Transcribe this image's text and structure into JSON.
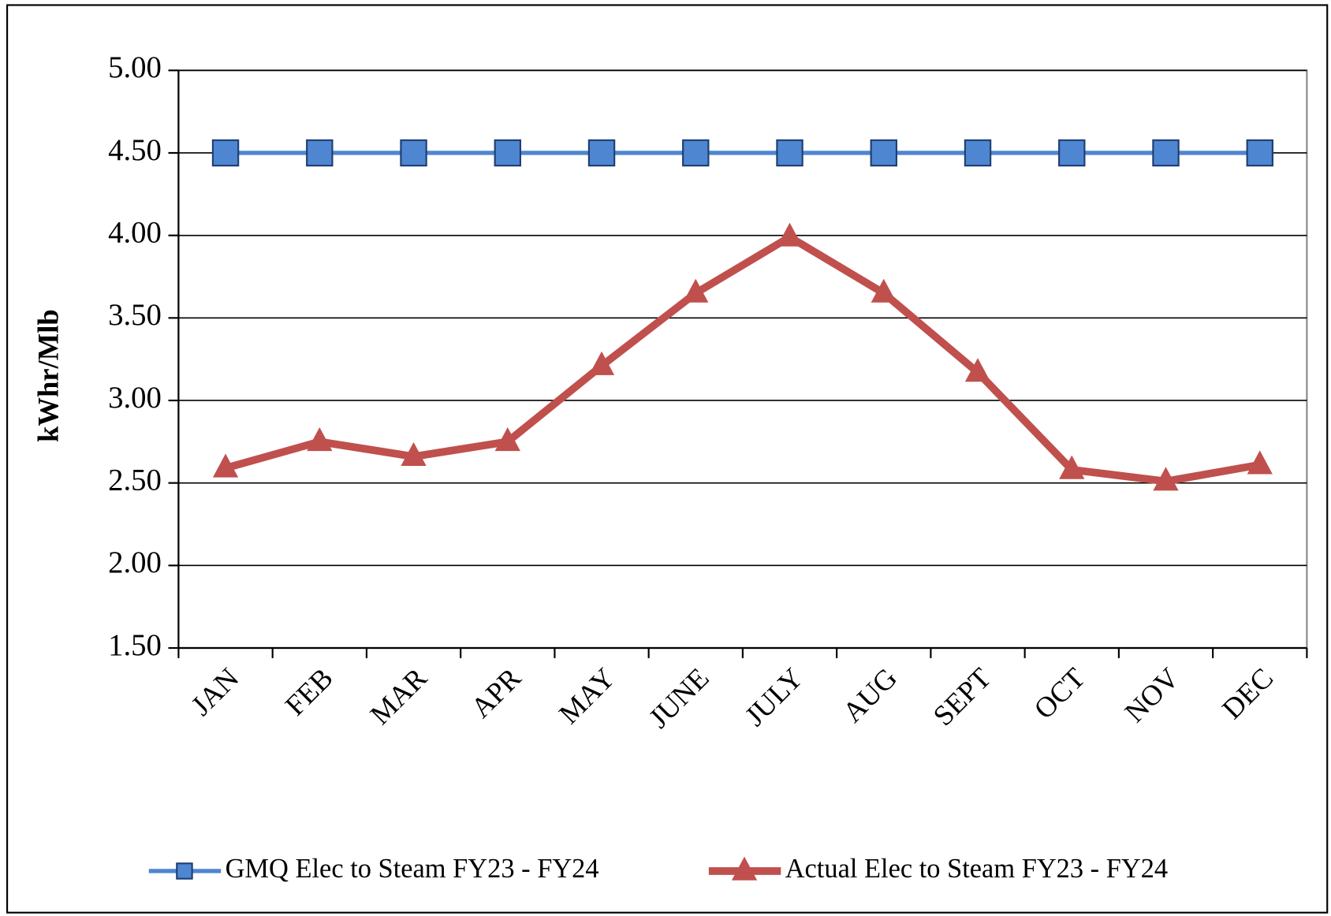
{
  "chart_data": {
    "type": "line",
    "y_label": "kWhr/Mlb",
    "categories": [
      "JAN",
      "FEB",
      "MAR",
      "APR",
      "MAY",
      "JUNE",
      "JULY",
      "AUG",
      "SEPT",
      "OCT",
      "NOV",
      "DEC"
    ],
    "series": [
      {
        "name": "GMQ Elec to Steam FY23 - FY24",
        "color": "#4f86d1",
        "marker": "square",
        "values": [
          4.5,
          4.5,
          4.5,
          4.5,
          4.5,
          4.5,
          4.5,
          4.5,
          4.5,
          4.5,
          4.5,
          4.5
        ]
      },
      {
        "name": "Actual Elec to Steam FY23 - FY24",
        "color": "#c0504d",
        "marker": "triangle",
        "values": [
          2.59,
          2.75,
          2.66,
          2.75,
          3.21,
          3.65,
          3.99,
          3.65,
          3.17,
          2.58,
          2.51,
          2.61
        ]
      }
    ],
    "ylim": [
      1.5,
      5.0
    ],
    "yticks": [
      {
        "value": 1.5,
        "label": "1.50"
      },
      {
        "value": 2,
        "label": "2.00"
      },
      {
        "value": 2.5,
        "label": "2.50"
      },
      {
        "value": 3,
        "label": "3.00"
      },
      {
        "value": 3.5,
        "label": "3.50"
      },
      {
        "value": 4,
        "label": "4.00"
      },
      {
        "value": 4.5,
        "label": "4.50"
      },
      {
        "value": 5,
        "label": "5.00"
      }
    ],
    "grid": true,
    "legend": "bottom"
  }
}
